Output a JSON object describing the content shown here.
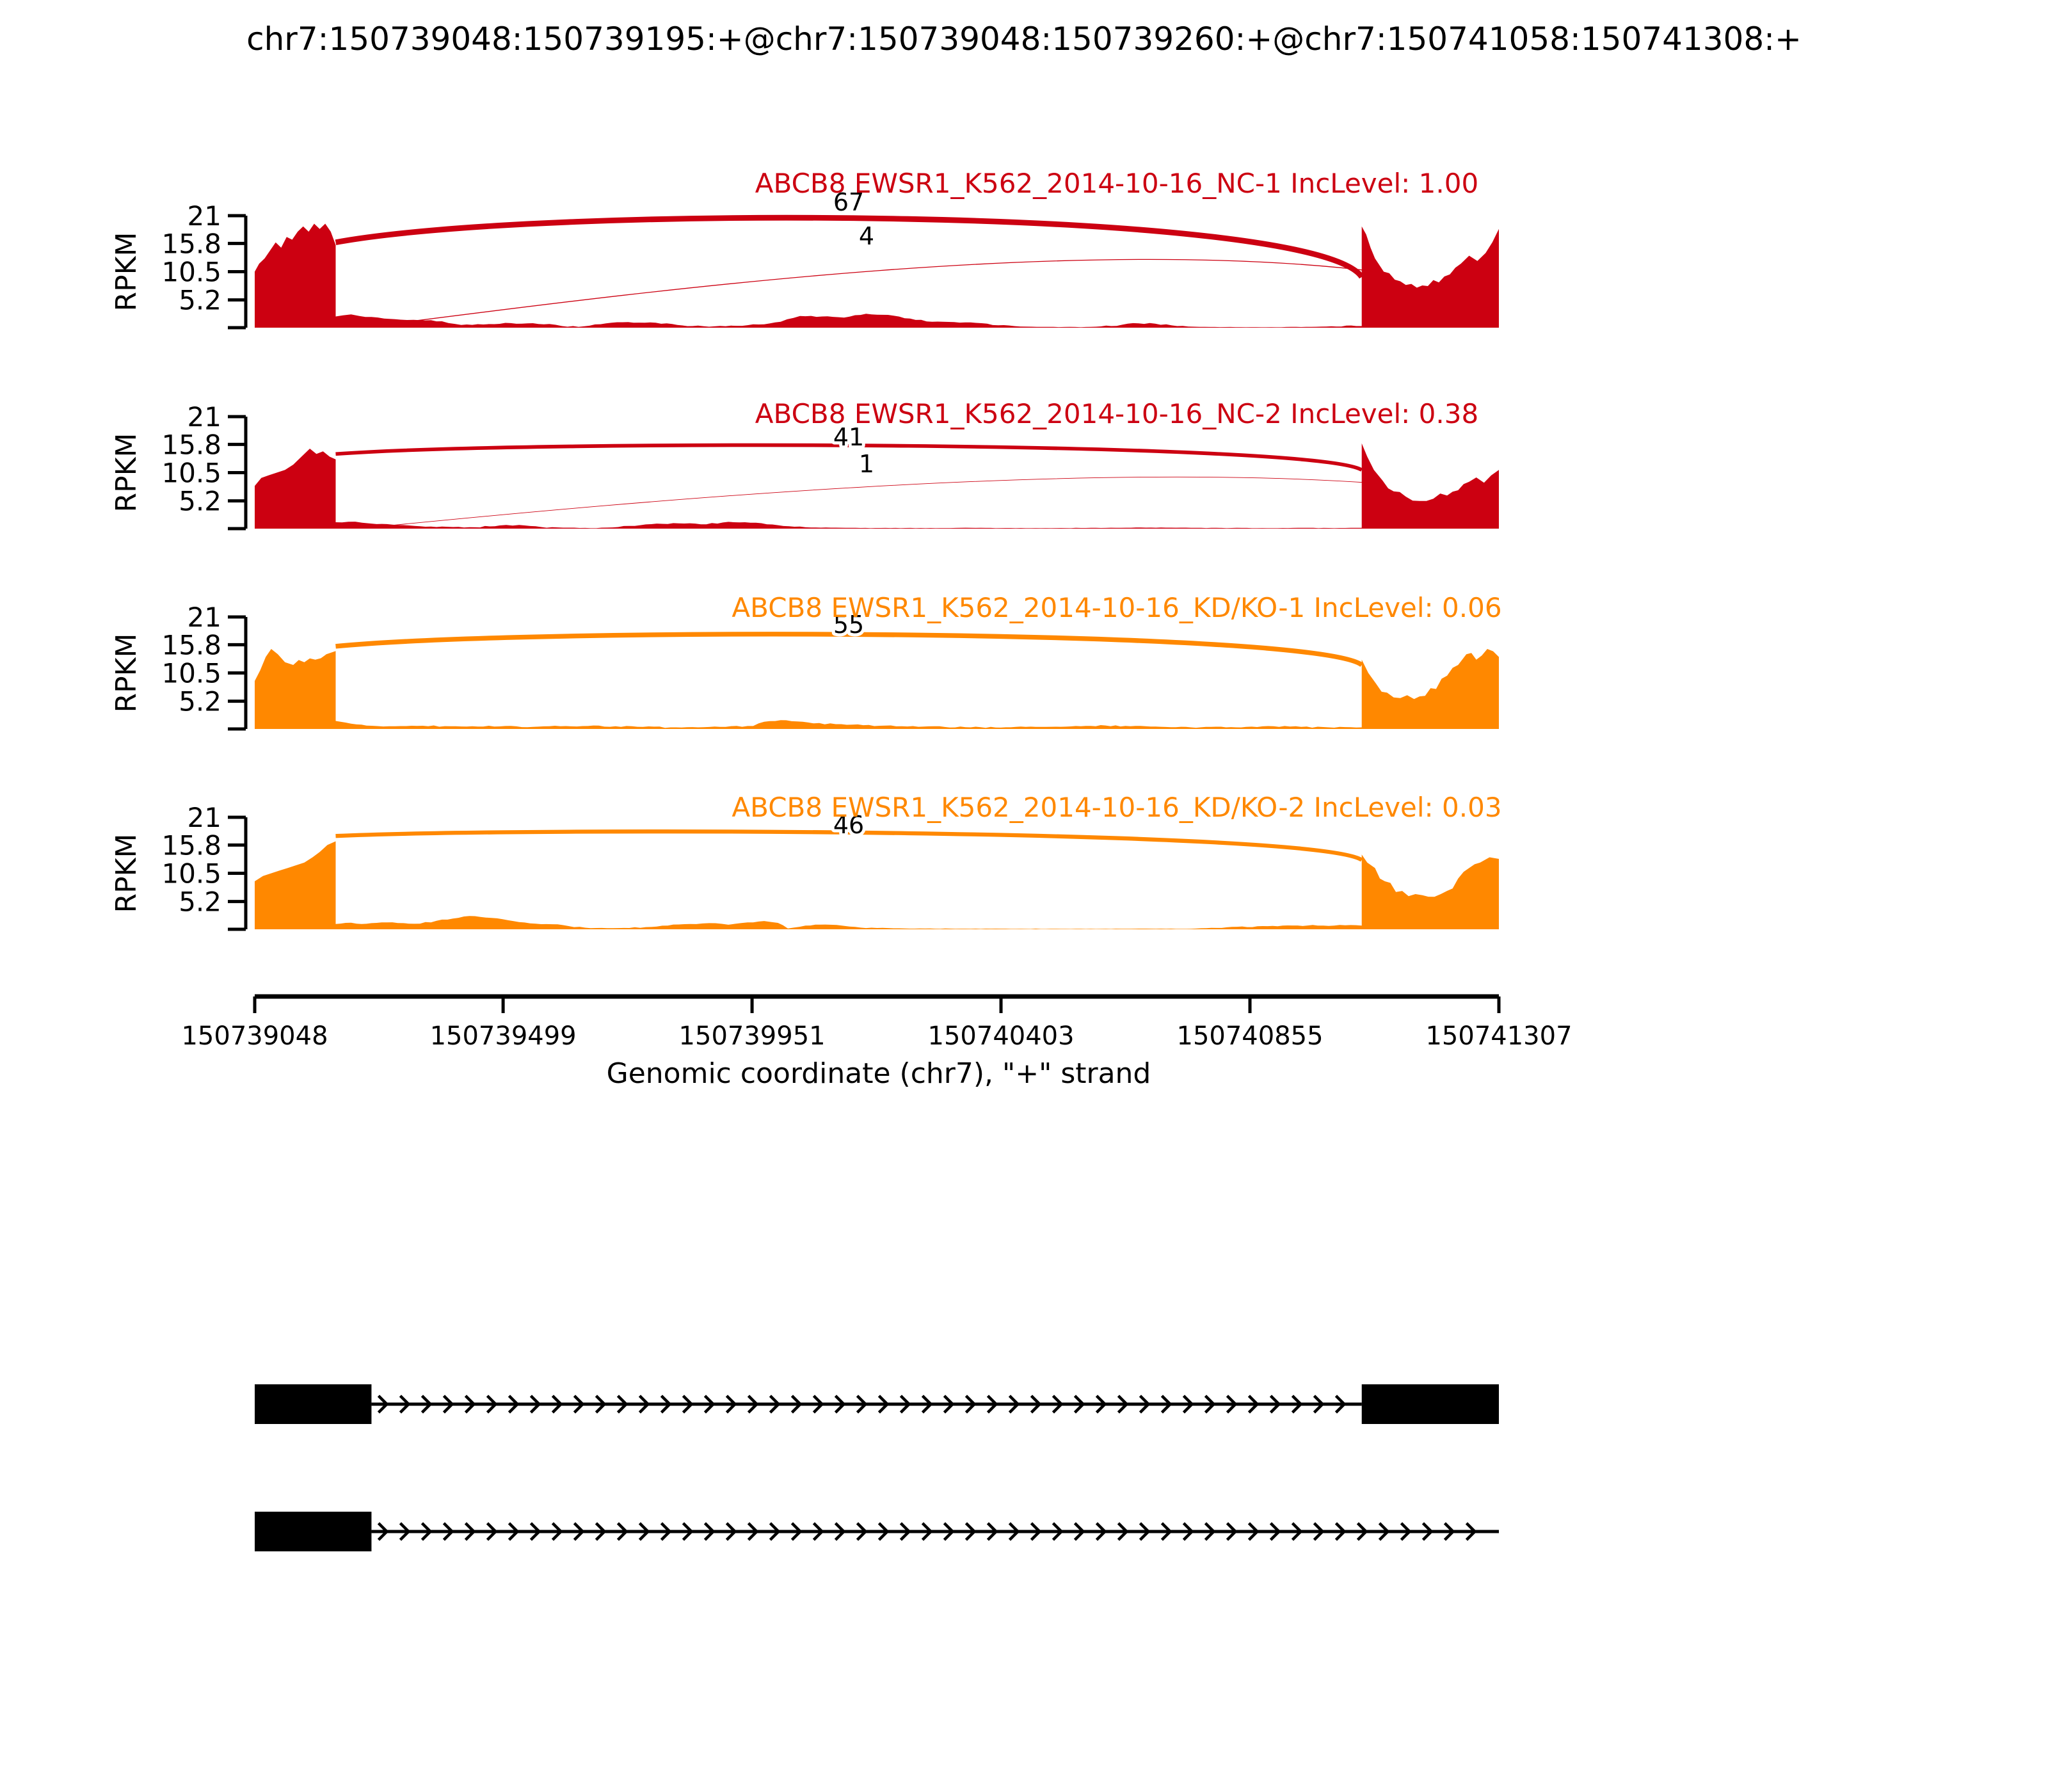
{
  "header": {
    "title": "chr7:150739048:150739195:+@chr7:150739048:150739260:+@chr7:150741058:150741308:+"
  },
  "colors": {
    "red": "#CC0011",
    "orange": "#FF8800",
    "black": "#000000"
  },
  "chart_data": {
    "type": "area",
    "variant": "sashimi-plot",
    "figure_title": "chr7:150739048:150739195:+@chr7:150739048:150739260:+@chr7:150741058:150741308:+",
    "xlabel": "Genomic coordinate (chr7), \"+\" strand",
    "ylabel": "RPKM",
    "x_ticks": [
      150739048,
      150739499,
      150739951,
      150740403,
      150740855,
      150741307
    ],
    "x_range": [
      150739048,
      150741307
    ],
    "y_ticks": [
      21,
      15.8,
      10.5,
      5.2
    ],
    "y_range": [
      0,
      21
    ],
    "grid": false,
    "event_exons": {
      "short_exon": [
        150739048,
        150739195
      ],
      "long_exon": [
        150739048,
        150739260
      ],
      "flanking_exon": [
        150741058,
        150741308
      ]
    },
    "tracks": [
      {
        "label": "ABCB8 EWSR1_K562_2014-10-16_NC-1 IncLevel: 1.00",
        "sample": "NC-1",
        "inc_level": "1.00",
        "color": "#CC0011",
        "junctions": [
          {
            "count": 67,
            "shape": "arch",
            "from": 147,
            "to": 2010,
            "y1": 16,
            "apex": 23.4,
            "y2": 9.5
          },
          {
            "count": 4,
            "shape": "rise",
            "from": 212,
            "to": 2037,
            "a1": 7,
            "a2": 17.5,
            "yend": 10.5
          }
        ],
        "coverage": [
          [
            0,
            10.5
          ],
          [
            8,
            12
          ],
          [
            18,
            13
          ],
          [
            28,
            14.5
          ],
          [
            38,
            16
          ],
          [
            48,
            15
          ],
          [
            58,
            17
          ],
          [
            68,
            16.5
          ],
          [
            78,
            18
          ],
          [
            88,
            19
          ],
          [
            98,
            18
          ],
          [
            108,
            19.5
          ],
          [
            118,
            18.5
          ],
          [
            128,
            19.5
          ],
          [
            138,
            18
          ],
          [
            147,
            15.5
          ],
          [
            147,
            2.1
          ],
          [
            160,
            2.3
          ],
          [
            175,
            2.5
          ],
          [
            190,
            2.2
          ],
          [
            212,
            2.0
          ],
          [
            235,
            1.7
          ],
          [
            265,
            1.5
          ],
          [
            300,
            1.4
          ],
          [
            340,
            1.2
          ],
          [
            375,
            0.5
          ],
          [
            415,
            0.6
          ],
          [
            455,
            0.9
          ],
          [
            495,
            0.8
          ],
          [
            535,
            0.7
          ],
          [
            558,
            0.3
          ],
          [
            598,
            0.25
          ],
          [
            638,
            0.8
          ],
          [
            678,
            1.05
          ],
          [
            718,
            1.0
          ],
          [
            758,
            0.7
          ],
          [
            795,
            0.3
          ],
          [
            835,
            0.25
          ],
          [
            875,
            0.35
          ],
          [
            915,
            0.6
          ],
          [
            955,
            1.1
          ],
          [
            990,
            2.2
          ],
          [
            1030,
            2.1
          ],
          [
            1070,
            1.9
          ],
          [
            1110,
            2.6
          ],
          [
            1150,
            2.4
          ],
          [
            1190,
            1.7
          ],
          [
            1230,
            1.1
          ],
          [
            1270,
            1.05
          ],
          [
            1310,
            0.9
          ],
          [
            1350,
            0.45
          ],
          [
            1390,
            0.2
          ],
          [
            1440,
            0.15
          ],
          [
            1500,
            0.1
          ],
          [
            1555,
            0.3
          ],
          [
            1595,
            0.85
          ],
          [
            1635,
            0.75
          ],
          [
            1675,
            0.3
          ],
          [
            1715,
            0.15
          ],
          [
            1800,
            0.1
          ],
          [
            1900,
            0.12
          ],
          [
            1955,
            0.25
          ],
          [
            2000,
            0.3
          ],
          [
            2010,
            0.3
          ],
          [
            2010,
            19
          ],
          [
            2018,
            17.5
          ],
          [
            2026,
            15
          ],
          [
            2034,
            13
          ],
          [
            2050,
            10.5
          ],
          [
            2070,
            9
          ],
          [
            2090,
            8
          ],
          [
            2110,
            7.5
          ],
          [
            2130,
            7.8
          ],
          [
            2150,
            8.5
          ],
          [
            2170,
            10
          ],
          [
            2190,
            12
          ],
          [
            2205,
            13.5
          ],
          [
            2220,
            12.5
          ],
          [
            2235,
            14
          ],
          [
            2247,
            16
          ],
          [
            2259,
            18.5
          ]
        ]
      },
      {
        "label": "ABCB8 EWSR1_K562_2014-10-16_NC-2 IncLevel: 0.38",
        "sample": "NC-2",
        "inc_level": "0.38",
        "color": "#CC0011",
        "junctions": [
          {
            "count": 41,
            "shape": "arch",
            "from": 147,
            "to": 2010,
            "y1": 14,
            "apex": 17.0,
            "y2": 11
          },
          {
            "count": 1,
            "shape": "rise",
            "from": 212,
            "to": 2037,
            "a1": 5.5,
            "a2": 12.5,
            "yend": 8.5
          }
        ],
        "coverage": [
          [
            0,
            8
          ],
          [
            12,
            9.5
          ],
          [
            25,
            10
          ],
          [
            40,
            10.5
          ],
          [
            55,
            11
          ],
          [
            70,
            12
          ],
          [
            85,
            13.5
          ],
          [
            100,
            15
          ],
          [
            112,
            14
          ],
          [
            124,
            14.5
          ],
          [
            136,
            13.5
          ],
          [
            147,
            13
          ],
          [
            147,
            1.2
          ],
          [
            170,
            1.3
          ],
          [
            195,
            1.1
          ],
          [
            212,
            0.95
          ],
          [
            240,
            0.85
          ],
          [
            280,
            0.6
          ],
          [
            320,
            0.4
          ],
          [
            360,
            0.3
          ],
          [
            400,
            0.25
          ],
          [
            445,
            0.6
          ],
          [
            480,
            0.7
          ],
          [
            520,
            0.3
          ],
          [
            560,
            0.18
          ],
          [
            620,
            0.1
          ],
          [
            690,
            0.5
          ],
          [
            730,
            0.95
          ],
          [
            770,
            1.0
          ],
          [
            810,
            0.8
          ],
          [
            850,
            1.15
          ],
          [
            890,
            1.2
          ],
          [
            930,
            0.8
          ],
          [
            970,
            0.45
          ],
          [
            1010,
            0.2
          ],
          [
            1100,
            0.12
          ],
          [
            1200,
            0.1
          ],
          [
            1300,
            0.15
          ],
          [
            1400,
            0.1
          ],
          [
            1500,
            0.12
          ],
          [
            1600,
            0.2
          ],
          [
            1700,
            0.15
          ],
          [
            1820,
            0.1
          ],
          [
            1950,
            0.12
          ],
          [
            2010,
            0.15
          ],
          [
            2010,
            16
          ],
          [
            2020,
            13.5
          ],
          [
            2032,
            11
          ],
          [
            2048,
            9
          ],
          [
            2068,
            7
          ],
          [
            2090,
            6
          ],
          [
            2115,
            5.2
          ],
          [
            2140,
            5.6
          ],
          [
            2165,
            6.2
          ],
          [
            2185,
            7.2
          ],
          [
            2205,
            8.8
          ],
          [
            2218,
            9.6
          ],
          [
            2232,
            8.6
          ],
          [
            2245,
            10
          ],
          [
            2259,
            11
          ]
        ]
      },
      {
        "label": "ABCB8 EWSR1_K562_2014-10-16_KD/KO-1 IncLevel: 0.06",
        "sample": "KD/KO-1",
        "inc_level": "0.06",
        "color": "#FF8800",
        "junctions": [
          {
            "count": 55,
            "shape": "arch",
            "from": 147,
            "to": 2010,
            "y1": 15.5,
            "apex": 19.4,
            "y2": 12
          }
        ],
        "coverage": [
          [
            0,
            9
          ],
          [
            10,
            11
          ],
          [
            20,
            13.5
          ],
          [
            30,
            15
          ],
          [
            42,
            14
          ],
          [
            55,
            12.5
          ],
          [
            70,
            12
          ],
          [
            90,
            12.5
          ],
          [
            110,
            13
          ],
          [
            130,
            14
          ],
          [
            147,
            14.6
          ],
          [
            147,
            1.5
          ],
          [
            165,
            1.2
          ],
          [
            185,
            0.85
          ],
          [
            212,
            0.6
          ],
          [
            255,
            0.5
          ],
          [
            305,
            0.6
          ],
          [
            355,
            0.5
          ],
          [
            405,
            0.45
          ],
          [
            455,
            0.55
          ],
          [
            505,
            0.4
          ],
          [
            555,
            0.5
          ],
          [
            605,
            0.55
          ],
          [
            655,
            0.5
          ],
          [
            705,
            0.4
          ],
          [
            755,
            0.3
          ],
          [
            805,
            0.3
          ],
          [
            855,
            0.4
          ],
          [
            905,
            0.55
          ],
          [
            925,
            1.35
          ],
          [
            955,
            1.65
          ],
          [
            985,
            1.4
          ],
          [
            1015,
            1.05
          ],
          [
            1055,
            0.9
          ],
          [
            1095,
            0.85
          ],
          [
            1135,
            0.6
          ],
          [
            1175,
            0.5
          ],
          [
            1215,
            0.45
          ],
          [
            1300,
            0.3
          ],
          [
            1400,
            0.4
          ],
          [
            1500,
            0.5
          ],
          [
            1545,
            0.65
          ],
          [
            1590,
            0.5
          ],
          [
            1700,
            0.3
          ],
          [
            1800,
            0.4
          ],
          [
            1850,
            0.5
          ],
          [
            1900,
            0.4
          ],
          [
            1950,
            0.3
          ],
          [
            2010,
            0.3
          ],
          [
            2010,
            13
          ],
          [
            2022,
            10.5
          ],
          [
            2036,
            8.5
          ],
          [
            2056,
            6.8
          ],
          [
            2080,
            5.8
          ],
          [
            2105,
            5.6
          ],
          [
            2125,
            6.2
          ],
          [
            2145,
            7.5
          ],
          [
            2165,
            10
          ],
          [
            2185,
            12
          ],
          [
            2200,
            14
          ],
          [
            2218,
            13
          ],
          [
            2238,
            15
          ],
          [
            2259,
            13.5
          ]
        ]
      },
      {
        "label": "ABCB8 EWSR1_K562_2014-10-16_KD/KO-2 IncLevel: 0.03",
        "sample": "KD/KO-2",
        "inc_level": "0.03",
        "color": "#FF8800",
        "junctions": [
          {
            "count": 46,
            "shape": "arch",
            "from": 147,
            "to": 2010,
            "y1": 17.5,
            "apex": 19.4,
            "y2": 13
          }
        ],
        "coverage": [
          [
            0,
            9
          ],
          [
            15,
            10
          ],
          [
            30,
            10.5
          ],
          [
            45,
            11
          ],
          [
            60,
            11.5
          ],
          [
            75,
            12
          ],
          [
            90,
            12.5
          ],
          [
            105,
            13.5
          ],
          [
            118,
            14.5
          ],
          [
            132,
            15.8
          ],
          [
            147,
            16.5
          ],
          [
            147,
            1.0
          ],
          [
            165,
            1.2
          ],
          [
            185,
            1.05
          ],
          [
            212,
            1.15
          ],
          [
            240,
            1.3
          ],
          [
            270,
            1.15
          ],
          [
            300,
            1.05
          ],
          [
            330,
            1.6
          ],
          [
            360,
            2.0
          ],
          [
            390,
            2.5
          ],
          [
            420,
            2.2
          ],
          [
            450,
            1.9
          ],
          [
            480,
            1.35
          ],
          [
            510,
            1.05
          ],
          [
            540,
            0.95
          ],
          [
            570,
            0.6
          ],
          [
            600,
            0.3
          ],
          [
            650,
            0.2
          ],
          [
            700,
            0.28
          ],
          [
            750,
            0.7
          ],
          [
            790,
            1.0
          ],
          [
            825,
            1.15
          ],
          [
            860,
            0.85
          ],
          [
            895,
            1.3
          ],
          [
            925,
            1.55
          ],
          [
            950,
            1.2
          ],
          [
            968,
            0.15
          ],
          [
            1000,
            0.7
          ],
          [
            1045,
            0.85
          ],
          [
            1080,
            0.5
          ],
          [
            1120,
            0.3
          ],
          [
            1180,
            0.15
          ],
          [
            1300,
            0.1
          ],
          [
            1500,
            0.08
          ],
          [
            1700,
            0.1
          ],
          [
            1830,
            0.6
          ],
          [
            1930,
            0.7
          ],
          [
            2010,
            0.7
          ],
          [
            2010,
            14
          ],
          [
            2020,
            12.5
          ],
          [
            2034,
            11.5
          ],
          [
            2052,
            9
          ],
          [
            2072,
            7
          ],
          [
            2095,
            6.2
          ],
          [
            2120,
            6.4
          ],
          [
            2142,
            6.1
          ],
          [
            2165,
            7.2
          ],
          [
            2185,
            9.5
          ],
          [
            2205,
            11.5
          ],
          [
            2225,
            12.5
          ],
          [
            2242,
            13.5
          ],
          [
            2259,
            13.2
          ]
        ]
      }
    ],
    "isoforms": [
      {
        "exons": [
          [
            150739048,
            150739260
          ],
          [
            150741058,
            150741307
          ]
        ],
        "line_to": 150741058
      },
      {
        "exons": [
          [
            150739048,
            150739260
          ]
        ],
        "line_to": 150741307
      }
    ]
  }
}
